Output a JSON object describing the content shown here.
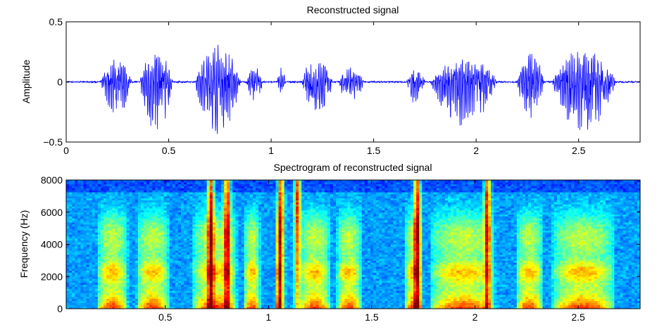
{
  "chart_data": [
    {
      "type": "line",
      "title": "Reconstructed signal",
      "xlabel": "",
      "ylabel": "Amplitude",
      "xlim": [
        0,
        2.8
      ],
      "ylim": [
        -0.5,
        0.5
      ],
      "xticks": [
        0,
        0.5,
        1,
        1.5,
        2,
        2.5
      ],
      "xtick_labels": [
        "0",
        "0.5",
        "1",
        "1.5",
        "2",
        "2.5"
      ],
      "yticks": [
        -0.5,
        0,
        0.5
      ],
      "ytick_labels": [
        "−0.5",
        "0",
        "0.5"
      ],
      "grid": false,
      "line_color": "#0000ff",
      "segments": [
        {
          "start": 0.17,
          "end": 0.32,
          "pos": 0.18,
          "neg": 0.28
        },
        {
          "start": 0.36,
          "end": 0.52,
          "pos": 0.25,
          "neg": 0.44
        },
        {
          "start": 0.63,
          "end": 0.85,
          "pos": 0.29,
          "neg": 0.4
        },
        {
          "start": 0.88,
          "end": 0.96,
          "pos": 0.12,
          "neg": 0.15
        },
        {
          "start": 1.03,
          "end": 1.07,
          "pos": 0.13,
          "neg": 0.1
        },
        {
          "start": 1.15,
          "end": 1.3,
          "pos": 0.2,
          "neg": 0.28
        },
        {
          "start": 1.33,
          "end": 1.45,
          "pos": 0.12,
          "neg": 0.18
        },
        {
          "start": 1.66,
          "end": 1.75,
          "pos": 0.12,
          "neg": 0.18
        },
        {
          "start": 1.78,
          "end": 2.1,
          "pos": 0.2,
          "neg": 0.35
        },
        {
          "start": 2.2,
          "end": 2.33,
          "pos": 0.24,
          "neg": 0.3
        },
        {
          "start": 2.37,
          "end": 2.68,
          "pos": 0.25,
          "neg": 0.38
        }
      ]
    },
    {
      "type": "heatmap",
      "title": "Spectrogram of reconstructed signal",
      "xlabel": "",
      "ylabel": "Frequency (Hz)",
      "xlim": [
        0.02,
        2.8
      ],
      "ylim": [
        0,
        8000
      ],
      "xticks": [
        0.5,
        1,
        1.5,
        2,
        2.5
      ],
      "xtick_labels": [
        "0.5",
        "1",
        "1.5",
        "2",
        "2.5"
      ],
      "yticks": [
        0,
        2000,
        4000,
        6000,
        8000
      ],
      "ytick_labels": [
        "0",
        "2000",
        "4000",
        "6000",
        "8000"
      ],
      "colormap": "jet",
      "grid": false
    }
  ]
}
